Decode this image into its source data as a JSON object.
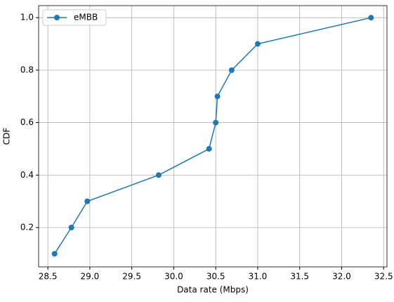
{
  "chart_data": {
    "type": "line",
    "x_label": "Data rate (Mbps)",
    "y_label": "CDF",
    "x": [
      28.58,
      28.78,
      28.97,
      29.82,
      30.42,
      30.5,
      30.52,
      30.69,
      31.0,
      32.35
    ],
    "series": [
      {
        "name": "eMBB",
        "color": "#1f77b4",
        "values": [
          0.1,
          0.2,
          0.3,
          0.4,
          0.5,
          0.6,
          0.7,
          0.8,
          0.9,
          1.0
        ]
      }
    ],
    "xlim": [
      28.39,
      32.54
    ],
    "ylim": [
      0.05,
      1.046
    ],
    "xticks": [
      {
        "value": 28.5,
        "label": "28.5"
      },
      {
        "value": 29,
        "label": "29.0"
      },
      {
        "value": 29.5,
        "label": "29.5"
      },
      {
        "value": 30,
        "label": "30.0"
      },
      {
        "value": 30.5,
        "label": "30.5"
      },
      {
        "value": 31,
        "label": "31.0"
      },
      {
        "value": 31.5,
        "label": "31.5"
      },
      {
        "value": 32,
        "label": "32.0"
      },
      {
        "value": 32.5,
        "label": "32.5"
      }
    ],
    "yticks": [
      0.2,
      0.4,
      0.6,
      0.8,
      {
        "value": 1,
        "label": "1.0"
      }
    ],
    "grid": true,
    "legend": "upper-left",
    "marker": "circle"
  }
}
